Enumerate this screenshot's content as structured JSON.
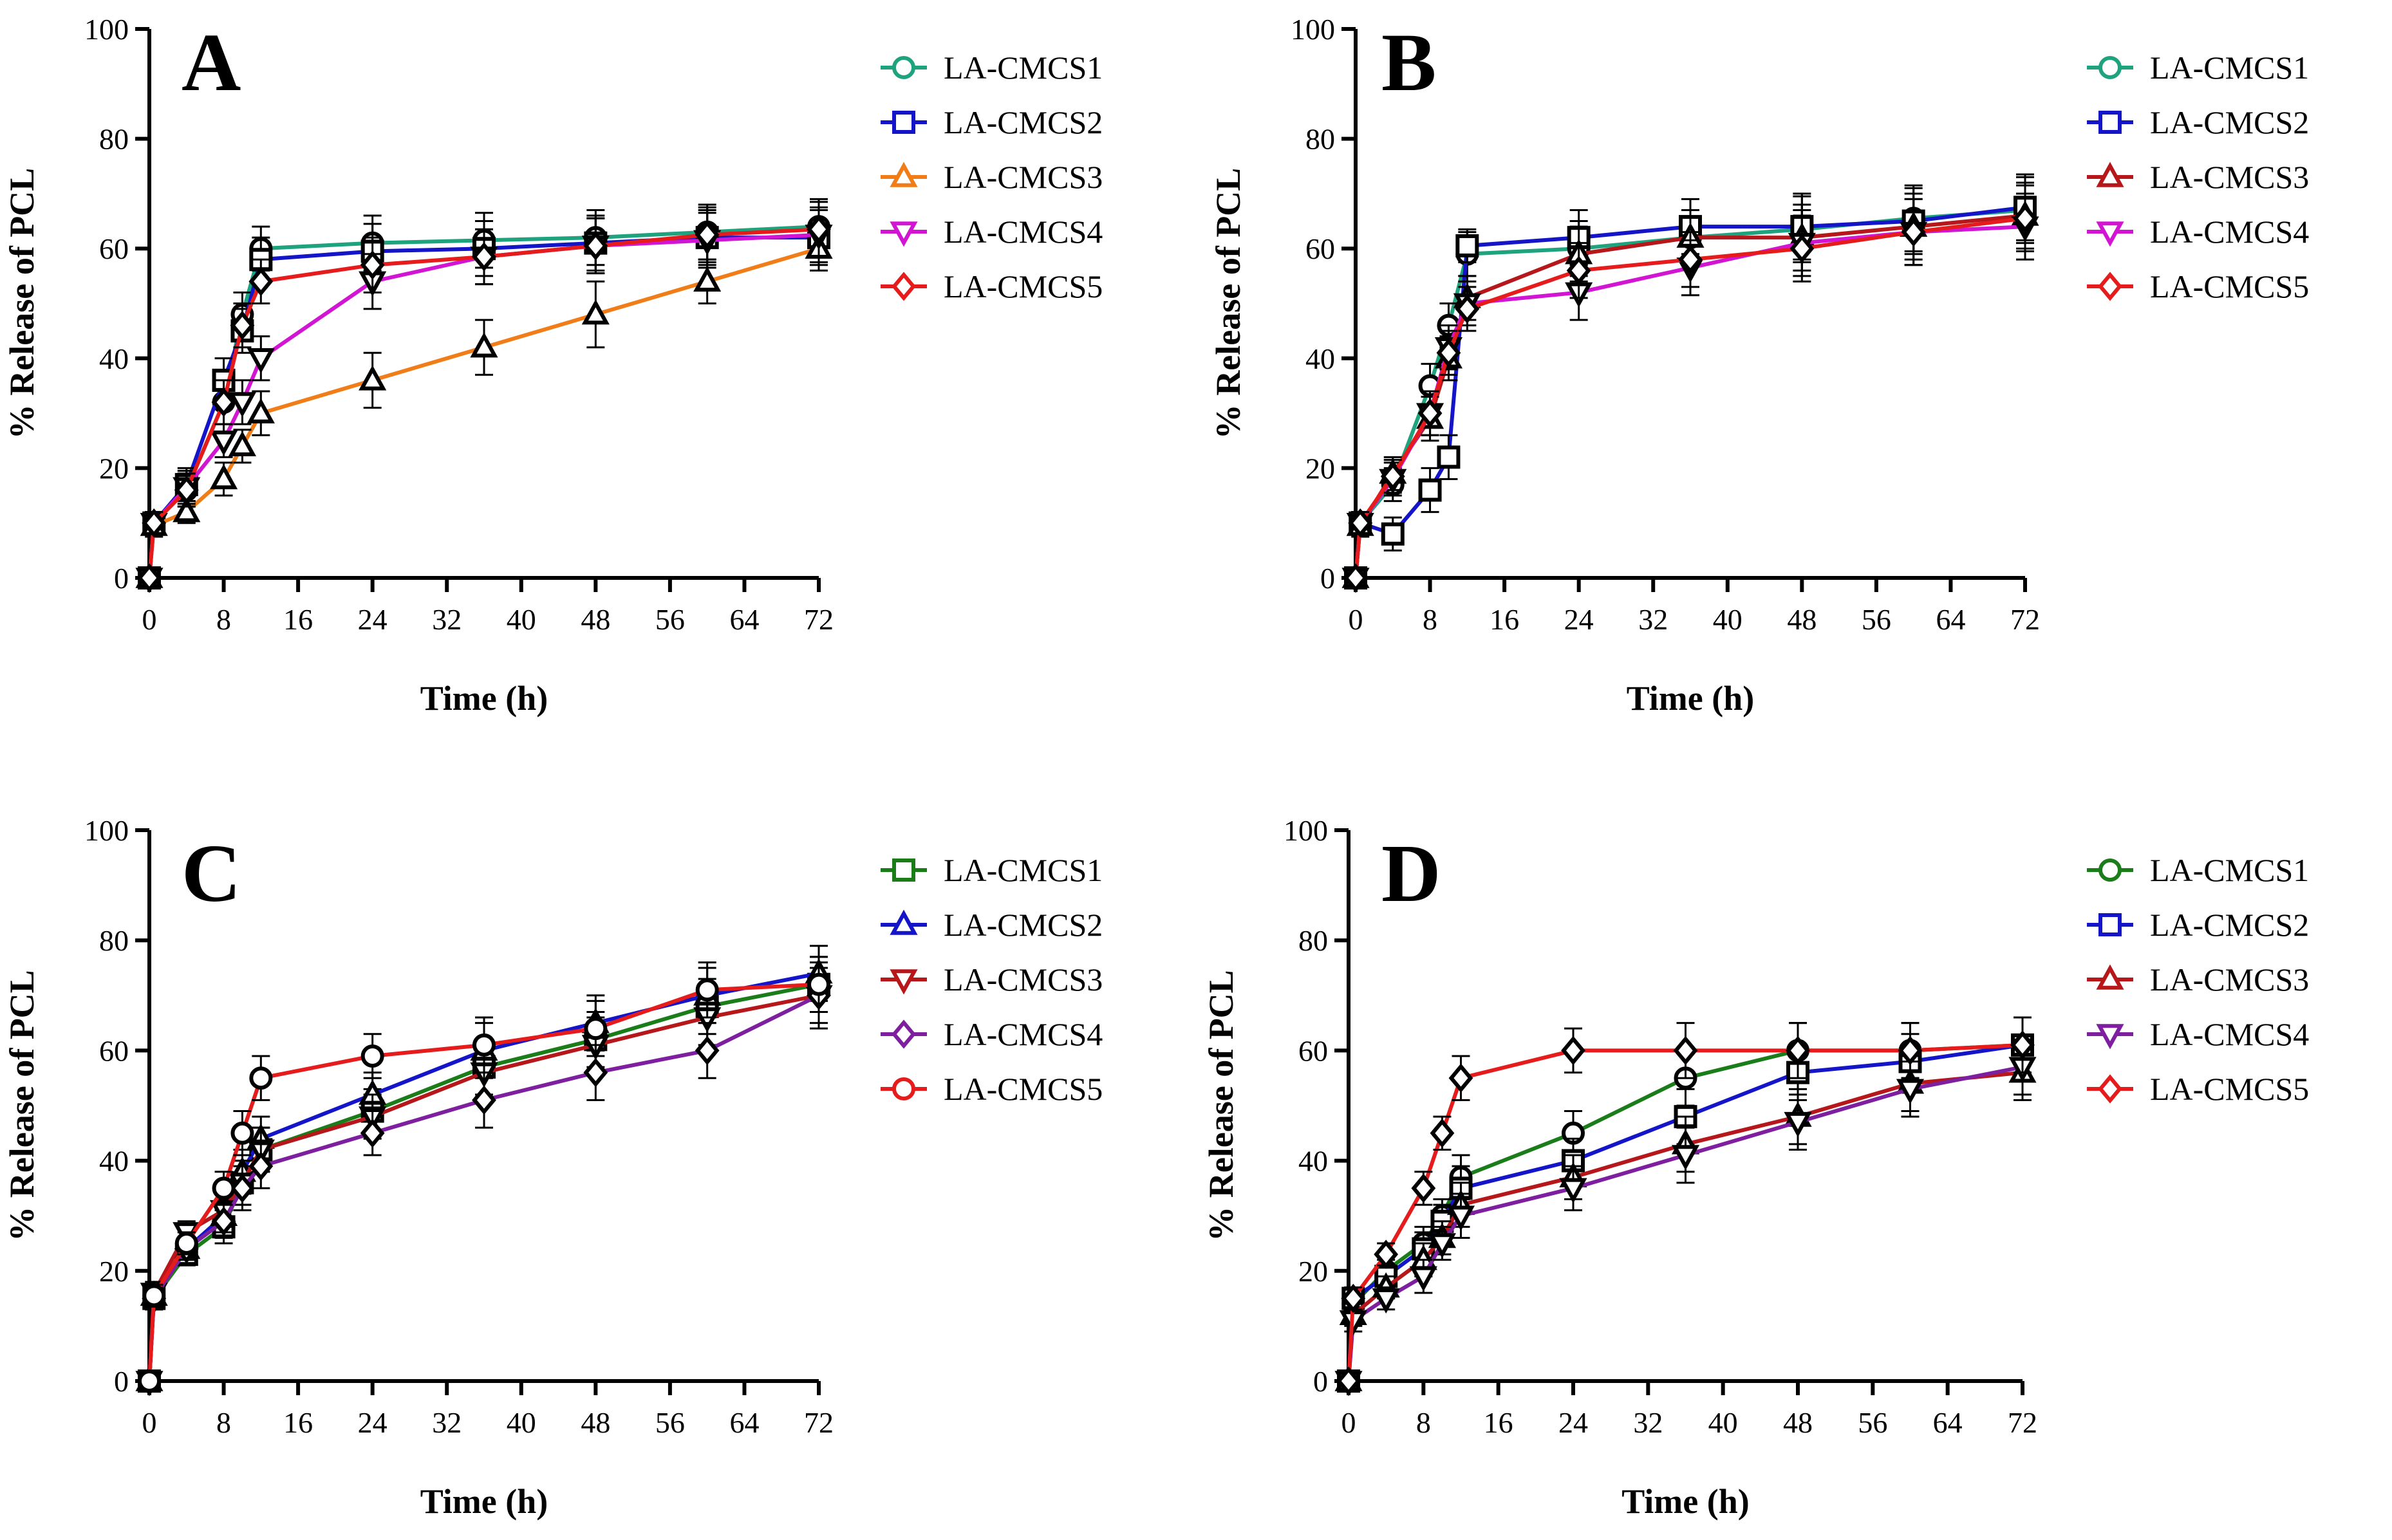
{
  "colors": {
    "teal": "#1fa37e",
    "green": "#1a7d1a",
    "blue": "#1414c8",
    "orange": "#f07d18",
    "magenta": "#d215d2",
    "purple": "#7d1f9e",
    "red": "#e61c1c",
    "dark_red": "#b5171b",
    "axis": "#000000"
  },
  "chart_data": [
    {
      "type": "line",
      "panel": "A",
      "xlabel": "Time (h)",
      "ylabel": "% Release of PCL",
      "xlim": [
        0,
        72
      ],
      "ylim": [
        0,
        100
      ],
      "xticks": [
        0,
        8,
        16,
        24,
        32,
        40,
        48,
        56,
        64,
        72
      ],
      "yticks": [
        0,
        20,
        40,
        60,
        80,
        100
      ],
      "x": [
        0,
        0.5,
        4,
        8,
        10,
        12,
        24,
        36,
        48,
        60,
        72
      ],
      "legend_position": "right",
      "series": [
        {
          "name": "LA-CMCS1",
          "marker": "circle",
          "color": "#1fa37e",
          "values": [
            0,
            10,
            16,
            32,
            48,
            60,
            61,
            61.5,
            62,
            63,
            64
          ],
          "errors": [
            0,
            2,
            3,
            4,
            4,
            4,
            5,
            5,
            5,
            5,
            5
          ]
        },
        {
          "name": "LA-CMCS2",
          "marker": "square",
          "color": "#1414c8",
          "values": [
            0,
            10,
            17,
            36,
            45,
            58,
            59.5,
            60,
            61,
            62,
            62
          ],
          "errors": [
            0,
            2,
            3,
            4,
            4,
            4,
            5,
            5,
            5,
            5,
            5
          ]
        },
        {
          "name": "LA-CMCS3",
          "marker": "triangle",
          "color": "#f07d18",
          "values": [
            0,
            9.5,
            12,
            18,
            24,
            30,
            36,
            42,
            48,
            54,
            60
          ],
          "errors": [
            0,
            2,
            2,
            3,
            3,
            4,
            5,
            5,
            6,
            4,
            4
          ]
        },
        {
          "name": "LA-CMCS4",
          "marker": "triangle-down",
          "color": "#d215d2",
          "values": [
            0,
            10,
            16.5,
            25,
            32,
            40,
            54,
            58.5,
            60.5,
            61.5,
            62.5
          ],
          "errors": [
            0,
            2,
            3,
            3,
            4,
            4,
            5,
            5,
            5,
            5,
            5
          ]
        },
        {
          "name": "LA-CMCS5",
          "marker": "diamond",
          "color": "#e61c1c",
          "values": [
            0,
            10,
            16,
            32,
            46,
            54,
            57,
            58.5,
            60.5,
            62.5,
            63.5
          ],
          "errors": [
            0,
            2,
            3,
            4,
            4,
            4,
            5,
            5,
            5,
            5,
            5
          ]
        }
      ]
    },
    {
      "type": "line",
      "panel": "B",
      "xlabel": "Time (h)",
      "ylabel": "% Release of PCL",
      "xlim": [
        0,
        72
      ],
      "ylim": [
        0,
        100
      ],
      "xticks": [
        0,
        8,
        16,
        24,
        32,
        40,
        48,
        56,
        64,
        72
      ],
      "yticks": [
        0,
        20,
        40,
        60,
        80,
        100
      ],
      "x": [
        0,
        0.5,
        4,
        8,
        10,
        12,
        24,
        36,
        48,
        60,
        72
      ],
      "legend_position": "right",
      "series": [
        {
          "name": "LA-CMCS1",
          "marker": "circle",
          "color": "#1fa37e",
          "values": [
            0,
            10,
            17,
            35,
            46,
            59,
            60,
            62,
            63.5,
            65.5,
            67
          ],
          "errors": [
            0,
            2,
            3,
            4,
            4,
            4,
            5,
            5,
            6,
            6,
            6
          ]
        },
        {
          "name": "LA-CMCS2",
          "marker": "square",
          "color": "#1414c8",
          "values": [
            0,
            10,
            8,
            16,
            22,
            60.5,
            62,
            64,
            64,
            65,
            67.5
          ],
          "errors": [
            0,
            2,
            3,
            4,
            4,
            3,
            5,
            5,
            6,
            6,
            6
          ]
        },
        {
          "name": "LA-CMCS3",
          "marker": "triangle",
          "color": "#b5171b",
          "values": [
            0,
            9.5,
            19,
            29,
            40,
            51,
            59,
            62,
            62,
            64,
            66
          ],
          "errors": [
            0,
            2,
            3,
            4,
            4,
            4,
            5,
            5,
            6,
            6,
            6
          ]
        },
        {
          "name": "LA-CMCS4",
          "marker": "triangle-down",
          "color": "#d215d2",
          "values": [
            0,
            10,
            18,
            30,
            42,
            50,
            52,
            56.5,
            61,
            63,
            64
          ],
          "errors": [
            0,
            2,
            3,
            4,
            4,
            4,
            5,
            5,
            6,
            6,
            6
          ]
        },
        {
          "name": "LA-CMCS5",
          "marker": "diamond",
          "color": "#e61c1c",
          "values": [
            0,
            10,
            18.5,
            30,
            41,
            49,
            56,
            58,
            60,
            63,
            65.5
          ],
          "errors": [
            0,
            2,
            3,
            4,
            4,
            4,
            5,
            5,
            6,
            6,
            6
          ]
        }
      ]
    },
    {
      "type": "line",
      "panel": "C",
      "xlabel": "Time (h)",
      "ylabel": "% Release of PCL",
      "xlim": [
        0,
        72
      ],
      "ylim": [
        0,
        100
      ],
      "xticks": [
        0,
        8,
        16,
        24,
        32,
        40,
        48,
        56,
        64,
        72
      ],
      "yticks": [
        0,
        20,
        40,
        60,
        80,
        100
      ],
      "x": [
        0,
        0.5,
        4,
        8,
        10,
        12,
        24,
        36,
        48,
        60,
        72
      ],
      "legend_position": "right",
      "series": [
        {
          "name": "LA-CMCS1",
          "marker": "square",
          "color": "#1a7d1a",
          "values": [
            0,
            15,
            23,
            28,
            36,
            42,
            49,
            57,
            62,
            68,
            72
          ],
          "errors": [
            0,
            2,
            2,
            3,
            4,
            4,
            4,
            5,
            5,
            5,
            5
          ]
        },
        {
          "name": "LA-CMCS2",
          "marker": "triangle",
          "color": "#1414c8",
          "values": [
            0,
            15.5,
            24,
            30,
            38,
            44,
            52,
            60,
            65,
            70,
            74
          ],
          "errors": [
            0,
            2,
            2,
            3,
            4,
            4,
            4,
            5,
            5,
            5,
            5
          ]
        },
        {
          "name": "LA-CMCS3",
          "marker": "triangle-down",
          "color": "#b5171b",
          "values": [
            0,
            16,
            27,
            31,
            36,
            42,
            48,
            56,
            61,
            66,
            70
          ],
          "errors": [
            0,
            2,
            2,
            3,
            4,
            4,
            4,
            5,
            5,
            5,
            5
          ]
        },
        {
          "name": "LA-CMCS4",
          "marker": "diamond",
          "color": "#7d1f9e",
          "values": [
            0,
            15,
            24,
            29,
            35,
            39,
            45,
            51,
            56,
            60,
            70
          ],
          "errors": [
            0,
            2,
            2,
            3,
            4,
            4,
            4,
            5,
            5,
            5,
            6
          ]
        },
        {
          "name": "LA-CMCS5",
          "marker": "circle",
          "color": "#e61c1c",
          "values": [
            0,
            15.5,
            25,
            35,
            45,
            55,
            59,
            61,
            64,
            71,
            72
          ],
          "errors": [
            0,
            2,
            2,
            3,
            4,
            4,
            4,
            5,
            5,
            5,
            5
          ]
        }
      ]
    },
    {
      "type": "line",
      "panel": "D",
      "xlabel": "Time (h)",
      "ylabel": "% Release of PCL",
      "xlim": [
        0,
        72
      ],
      "ylim": [
        0,
        100
      ],
      "xticks": [
        0,
        8,
        16,
        24,
        32,
        40,
        48,
        56,
        64,
        72
      ],
      "yticks": [
        0,
        20,
        40,
        60,
        80,
        100
      ],
      "x": [
        0,
        0.5,
        4,
        8,
        10,
        12,
        24,
        36,
        48,
        60,
        72
      ],
      "legend_position": "right",
      "series": [
        {
          "name": "LA-CMCS1",
          "marker": "circle",
          "color": "#1a7d1a",
          "values": [
            0,
            14,
            20,
            25,
            30,
            37,
            45,
            55,
            60,
            60,
            61
          ],
          "errors": [
            0,
            2,
            2,
            3,
            3,
            4,
            4,
            5,
            5,
            5,
            5
          ]
        },
        {
          "name": "LA-CMCS2",
          "marker": "square",
          "color": "#1414c8",
          "values": [
            0,
            15,
            19,
            24,
            29,
            35,
            40,
            48,
            56,
            58,
            61
          ],
          "errors": [
            0,
            2,
            2,
            3,
            3,
            4,
            4,
            5,
            5,
            5,
            5
          ]
        },
        {
          "name": "LA-CMCS3",
          "marker": "triangle",
          "color": "#b5171b",
          "values": [
            0,
            12,
            17,
            22,
            26,
            32,
            37,
            43,
            48,
            54,
            56
          ],
          "errors": [
            0,
            2,
            2,
            3,
            3,
            4,
            4,
            5,
            5,
            5,
            5
          ]
        },
        {
          "name": "LA-CMCS4",
          "marker": "triangle-down",
          "color": "#7d1f9e",
          "values": [
            0,
            11,
            15,
            19,
            25,
            30,
            35,
            41,
            47,
            53,
            57
          ],
          "errors": [
            0,
            2,
            2,
            3,
            3,
            4,
            4,
            5,
            5,
            5,
            5
          ]
        },
        {
          "name": "LA-CMCS5",
          "marker": "diamond",
          "color": "#e61c1c",
          "values": [
            0,
            15,
            23,
            35,
            45,
            55,
            60,
            60,
            60,
            60,
            61
          ],
          "errors": [
            0,
            2,
            2,
            3,
            3,
            4,
            4,
            5,
            5,
            5,
            5
          ]
        }
      ]
    }
  ]
}
